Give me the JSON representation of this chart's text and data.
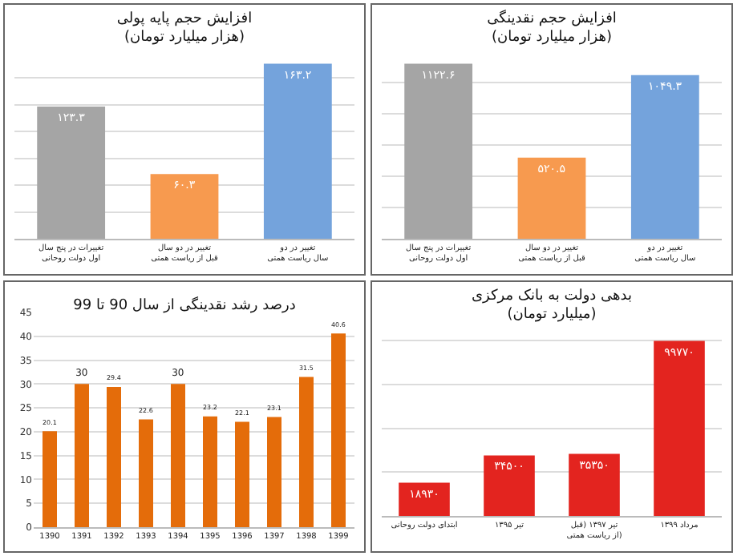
{
  "chart_data": [
    {
      "type": "bar",
      "title": "افزایش حجم پایه پولی\n(هزار میلیارد تومان)",
      "categories": [
        "تغییرات در پنج سال اول دولت روحانی",
        "تغییر در دو سال قبل از ریاست همتی",
        "تغییر در دو سال ریاست همتی"
      ],
      "values": [
        123.3,
        60.3,
        163.2
      ],
      "value_labels": [
        "۱۲۳.۳",
        "۶۰.۳",
        "۱۶۳.۲"
      ],
      "colors": [
        "#a5a5a5",
        "#f79a4f",
        "#74a3dc"
      ],
      "yticks": [
        {
          "value": 0,
          "label": null
        },
        {
          "value": 25,
          "label": null
        },
        {
          "value": 50,
          "label": null
        },
        {
          "value": 75,
          "label": null
        },
        {
          "value": 100,
          "label": null
        },
        {
          "value": 125,
          "label": null
        },
        {
          "value": 150,
          "label": null
        }
      ],
      "grid": "y",
      "tick_labels": "x"
    },
    {
      "type": "bar",
      "title": "افزایش حجم نقدینگی\n(هزار میلیارد تومان)",
      "categories": [
        "تغییرات در پنج سال اول دولت روحانی",
        "تغییر در دو سال قبل از ریاست همتی",
        "تغییر در دو سال ریاست همتی"
      ],
      "values": [
        1122.6,
        520.5,
        1049.3
      ],
      "value_labels": [
        "۱۱۲۲.۶",
        "۵۲۰.۵",
        "۱۰۴۹.۳"
      ],
      "colors": [
        "#a5a5a5",
        "#f79a4f",
        "#74a3dc"
      ],
      "yticks": [
        {
          "value": 0,
          "label": null
        },
        {
          "value": 200,
          "label": null
        },
        {
          "value": 400,
          "label": null
        },
        {
          "value": 600,
          "label": null
        },
        {
          "value": 800,
          "label": null
        },
        {
          "value": 1000,
          "label": null
        }
      ],
      "grid": "y",
      "tick_labels": "x"
    },
    {
      "type": "bar",
      "title": "درصد رشد نقدینگی از سال 90 تا 99",
      "categories": [
        "1390",
        "1391",
        "1392",
        "1393",
        "1394",
        "1395",
        "1396",
        "1397",
        "1398",
        "1399"
      ],
      "values": [
        20.1,
        30,
        29.4,
        22.6,
        30,
        23.2,
        22.1,
        23.1,
        31.5,
        40.6
      ],
      "color": "#e46c0a",
      "data_labels": true,
      "ylim": [
        0,
        45
      ],
      "yticks": [
        0,
        5,
        10,
        15,
        20,
        25,
        30,
        35,
        40,
        45
      ],
      "grid": "y"
    },
    {
      "type": "bar",
      "title": "بدهی دولت به بانک مرکزی\n(میلیارد تومان)",
      "categories": [
        "ابتدای دولت روحانی",
        "تیر ۱۳۹۵",
        "تیر ۱۳۹۷ (قبل از ریاست همتی)",
        "مرداد ۱۳۹۹"
      ],
      "values": [
        18930,
        34500,
        35350,
        99770
      ],
      "value_labels": [
        "۱۸۹۳۰",
        "۳۴۵۰۰",
        "۳۵۳۵۰",
        "۹۹۷۷۰"
      ],
      "color": "#e3241f",
      "yticks": [
        {
          "value": 0,
          "label": null
        },
        {
          "value": 25000,
          "label": null
        },
        {
          "value": 50000,
          "label": null
        },
        {
          "value": 75000,
          "label": null
        },
        {
          "value": 100000,
          "label": null
        }
      ],
      "grid": "y",
      "tick_labels": "x"
    }
  ]
}
